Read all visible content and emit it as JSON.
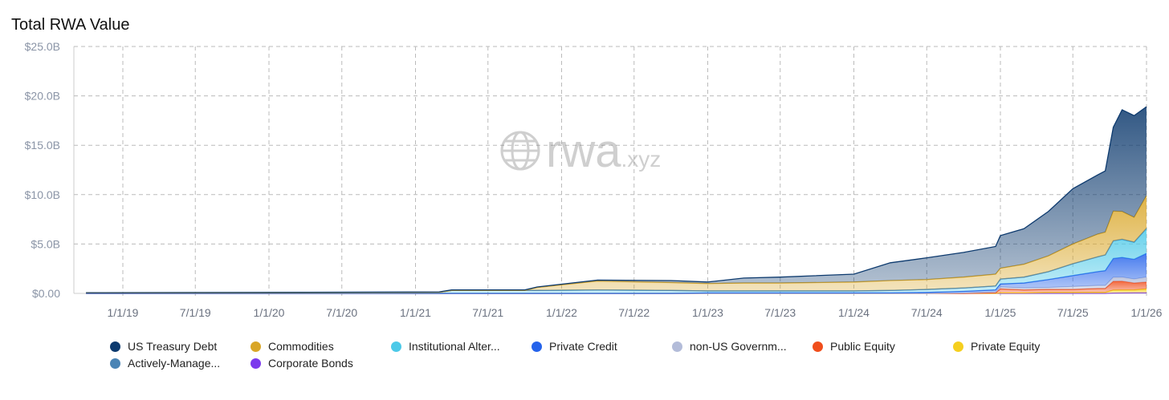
{
  "title": "Total RWA Value",
  "watermark": "rwa.xyz",
  "chart_data": {
    "type": "area",
    "stacked": true,
    "title": "Total RWA Value",
    "xlabel": "",
    "ylabel": "",
    "ylim": [
      0,
      25
    ],
    "y_unit": "$B",
    "y_ticks": [
      "$0.00",
      "$5.0B",
      "$10.0B",
      "$15.0B",
      "$20.0B",
      "$25.0B"
    ],
    "x_ticks": [
      "1/1/19",
      "7/1/19",
      "1/1/20",
      "7/1/20",
      "1/1/21",
      "7/1/21",
      "1/1/22",
      "7/1/22",
      "1/1/23",
      "7/1/23",
      "1/1/24",
      "7/1/24",
      "1/1/25",
      "7/1/25",
      "1/1/26"
    ],
    "grid": true,
    "legend_position": "bottom",
    "x": [
      "2018-10-01",
      "2019-07-01",
      "2020-07-01",
      "2021-03-01",
      "2021-04-01",
      "2021-10-01",
      "2021-11-01",
      "2022-04-01",
      "2022-10-01",
      "2023-01-01",
      "2023-04-01",
      "2023-07-01",
      "2024-01-01",
      "2024-04-01",
      "2024-07-01",
      "2024-10-01",
      "2024-12-20",
      "2025-01-01",
      "2025-03-01",
      "2025-05-01",
      "2025-07-01",
      "2025-09-01",
      "2025-09-20",
      "2025-10-10",
      "2025-11-01",
      "2025-12-01",
      "2026-01-01"
    ],
    "series": [
      {
        "name": "Corporate Bonds",
        "color": "#7c3aed",
        "values": [
          0,
          0,
          0,
          0,
          0,
          0,
          0,
          0,
          0,
          0,
          0,
          0,
          0,
          0,
          0,
          0,
          0,
          0,
          0,
          0,
          0,
          0,
          0,
          0.03,
          0.04,
          0.05,
          0.05
        ]
      },
      {
        "name": "Private Equity",
        "color": "#f5cf1f",
        "values": [
          0,
          0,
          0,
          0,
          0,
          0,
          0,
          0,
          0,
          0,
          0,
          0,
          0,
          0,
          0,
          0,
          0,
          0.05,
          0.05,
          0.1,
          0.1,
          0.1,
          0.1,
          0.3,
          0.3,
          0.3,
          0.4
        ]
      },
      {
        "name": "Public Equity",
        "color": "#f04e1c",
        "values": [
          0,
          0,
          0,
          0,
          0,
          0,
          0,
          0,
          0,
          0,
          0,
          0,
          0,
          0,
          0,
          0,
          0.05,
          0.4,
          0.3,
          0.3,
          0.3,
          0.4,
          0.4,
          0.9,
          0.9,
          0.7,
          0.7
        ]
      },
      {
        "name": "non-US Government Debt",
        "color": "#b3bcd9",
        "values": [
          0,
          0,
          0,
          0,
          0,
          0,
          0,
          0,
          0,
          0,
          0,
          0,
          0,
          0,
          0,
          0.05,
          0.1,
          0.2,
          0.2,
          0.2,
          0.3,
          0.3,
          0.3,
          0.4,
          0.4,
          0.4,
          0.5
        ]
      },
      {
        "name": "Private Credit",
        "color": "#2563eb",
        "values": [
          0,
          0,
          0,
          0,
          0,
          0,
          0,
          0,
          0,
          0.05,
          0.05,
          0.05,
          0.05,
          0.05,
          0.1,
          0.15,
          0.2,
          0.3,
          0.5,
          0.8,
          1.1,
          1.4,
          1.5,
          1.9,
          2.0,
          2.0,
          2.4
        ]
      },
      {
        "name": "Institutional Alternative Funds",
        "color": "#4cc9e8",
        "values": [
          0.05,
          0.06,
          0.08,
          0.1,
          0.3,
          0.3,
          0.3,
          0.35,
          0.3,
          0.2,
          0.2,
          0.2,
          0.2,
          0.25,
          0.3,
          0.35,
          0.4,
          0.5,
          0.6,
          0.8,
          1.2,
          1.5,
          1.6,
          1.8,
          1.8,
          1.7,
          2.5
        ]
      },
      {
        "name": "Actively-Managed Strategies",
        "color": "#4a84b5",
        "values": [
          0,
          0,
          0,
          0,
          0,
          0,
          0,
          0,
          0,
          0,
          0,
          0,
          0,
          0,
          0,
          0,
          0,
          0,
          0,
          0,
          0,
          0,
          0,
          0,
          0.05,
          0.05,
          0.05
        ]
      },
      {
        "name": "Commodities",
        "color": "#d9a627",
        "values": [
          0,
          0,
          0,
          0,
          0,
          0,
          0.3,
          0.9,
          0.8,
          0.75,
          0.8,
          0.8,
          0.9,
          1.0,
          1.0,
          1.1,
          1.2,
          1.1,
          1.3,
          1.6,
          2.0,
          2.3,
          2.3,
          3.0,
          2.8,
          2.5,
          3.3
        ]
      },
      {
        "name": "US Treasury Debt",
        "color": "#0d3a6e",
        "values": [
          0.02,
          0.03,
          0.04,
          0.05,
          0.05,
          0.05,
          0.05,
          0.1,
          0.2,
          0.15,
          0.5,
          0.6,
          0.8,
          1.8,
          2.2,
          2.5,
          2.8,
          3.3,
          3.6,
          4.5,
          5.6,
          6.0,
          6.2,
          8.5,
          10.3,
          10.3,
          9.0
        ]
      }
    ]
  },
  "legend": [
    {
      "label": "US Treasury Debt",
      "color": "#0d3a6e"
    },
    {
      "label": "Commodities",
      "color": "#d9a627"
    },
    {
      "label": "Institutional Alter...",
      "color": "#4cc9e8"
    },
    {
      "label": "Private Credit",
      "color": "#2563eb"
    },
    {
      "label": "non-US Governm...",
      "color": "#b3bcd9"
    },
    {
      "label": "Public Equity",
      "color": "#f04e1c"
    },
    {
      "label": "Private Equity",
      "color": "#f5cf1f"
    },
    {
      "label": "Actively-Manage...",
      "color": "#4a84b5"
    },
    {
      "label": "Corporate Bonds",
      "color": "#7c3aed"
    }
  ]
}
